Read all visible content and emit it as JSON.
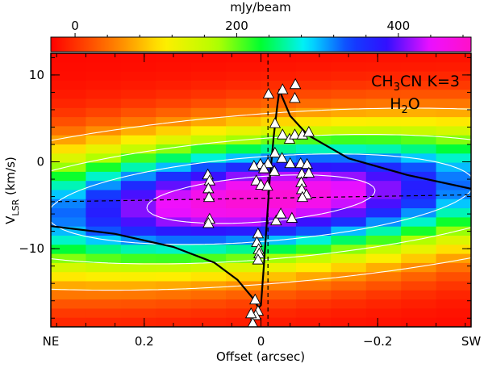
{
  "chart_data": {
    "type": "heatmap",
    "subtype": "position-velocity diagram",
    "colorbar": {
      "label": "mJy/beam",
      "range": [
        -30,
        490
      ],
      "ticks": [
        0,
        200,
        400
      ],
      "tick_labels": [
        "0",
        "200",
        "400"
      ],
      "stops": [
        {
          "v": -30,
          "color": "#ff0000"
        },
        {
          "v": 50,
          "color": "#ff8000"
        },
        {
          "v": 110,
          "color": "#ffee00"
        },
        {
          "v": 175,
          "color": "#b4ff00"
        },
        {
          "v": 230,
          "color": "#00ff30"
        },
        {
          "v": 285,
          "color": "#00f0ff"
        },
        {
          "v": 340,
          "color": "#1040ff"
        },
        {
          "v": 385,
          "color": "#3010ff"
        },
        {
          "v": 440,
          "color": "#ee10ff"
        },
        {
          "v": 490,
          "color": "#ff10c8"
        }
      ]
    },
    "xaxis": {
      "label": "Offset (arcsec)",
      "range": [
        0.36,
        -0.36
      ],
      "ticks": [
        0.2,
        0,
        -0.2
      ],
      "tick_labels": [
        "0.2",
        "0",
        "−0.2"
      ],
      "minor_step": 0.05,
      "end_labels": {
        "left": "NE",
        "right": "SW"
      }
    },
    "yaxis": {
      "label_main": "V",
      "label_sub": "LSR",
      "label_unit": " (km/s)",
      "range": [
        -19,
        12.5
      ],
      "ticks": [
        10,
        0,
        -10
      ],
      "tick_labels": [
        "10",
        "0",
        "−10"
      ],
      "minor_step": 2
    },
    "emission_model": {
      "v_systemic": -4.3,
      "peak_mjy": 480,
      "velocity_gradient_kms_per_arcsec": -5.0,
      "line_width_kms": 5.2,
      "spatial_extent_arcsec": 0.55,
      "background_mjy": -25
    },
    "contour_levels_mjy": [
      60,
      180,
      300,
      420
    ],
    "contour_color": "#ffffff",
    "reference_lines": [
      {
        "type": "vertical",
        "x": -0.012,
        "style": "dashed"
      },
      {
        "type": "fit",
        "style": "dashed",
        "points": [
          [
            0.36,
            -4.6
          ],
          [
            -0.36,
            -3.8
          ]
        ]
      }
    ],
    "keplerian_curves": [
      {
        "name": "red-shifted lobe (NE)",
        "points": [
          [
            0.36,
            -7.4
          ],
          [
            0.25,
            -8.3
          ],
          [
            0.15,
            -9.8
          ],
          [
            0.08,
            -11.6
          ],
          [
            0.04,
            -13.6
          ],
          [
            0.015,
            -15.6
          ],
          [
            0.004,
            -16.8
          ]
        ]
      },
      {
        "name": "blue-shifted lobe (SW)",
        "points": [
          [
            -0.36,
            -3.1
          ],
          [
            -0.25,
            -1.5
          ],
          [
            -0.15,
            0.4
          ],
          [
            -0.08,
            3.1
          ],
          [
            -0.05,
            5.3
          ],
          [
            -0.035,
            7.7
          ],
          [
            -0.032,
            8.4
          ]
        ]
      },
      {
        "name": "central connection",
        "points": [
          [
            0.004,
            -16.8
          ],
          [
            0.0,
            -16.5
          ],
          [
            -0.005,
            -12.0
          ],
          [
            -0.01,
            -7.0
          ],
          [
            -0.015,
            -2.0
          ],
          [
            -0.022,
            3.0
          ],
          [
            -0.028,
            6.5
          ],
          [
            -0.032,
            8.4
          ]
        ]
      }
    ],
    "h2o_masers": [
      {
        "x": -0.037,
        "y": 8.3
      },
      {
        "x": -0.013,
        "y": 7.8
      },
      {
        "x": -0.059,
        "y": 8.9
      },
      {
        "x": -0.058,
        "y": 7.3
      },
      {
        "x": -0.024,
        "y": 4.4
      },
      {
        "x": -0.037,
        "y": 3.1
      },
      {
        "x": -0.049,
        "y": 2.6
      },
      {
        "x": -0.058,
        "y": 3.1
      },
      {
        "x": -0.071,
        "y": 3.1
      },
      {
        "x": -0.082,
        "y": 3.4
      },
      {
        "x": -0.024,
        "y": 1.0
      },
      {
        "x": -0.036,
        "y": 0.4
      },
      {
        "x": -0.05,
        "y": -0.2
      },
      {
        "x": -0.068,
        "y": -0.2
      },
      {
        "x": -0.079,
        "y": -0.3
      },
      {
        "x": -0.012,
        "y": -0.2
      },
      {
        "x": -0.023,
        "y": -1.1
      },
      {
        "x": -0.07,
        "y": -1.4
      },
      {
        "x": -0.082,
        "y": -1.3
      },
      {
        "x": 0.001,
        "y": -0.3
      },
      {
        "x": -0.005,
        "y": -0.8
      },
      {
        "x": 0.012,
        "y": -0.5
      },
      {
        "x": 0.008,
        "y": -2.2
      },
      {
        "x": 0.0,
        "y": -2.7
      },
      {
        "x": -0.011,
        "y": -2.8
      },
      {
        "x": 0.091,
        "y": -1.5
      },
      {
        "x": 0.088,
        "y": -2.2
      },
      {
        "x": 0.09,
        "y": -3.1
      },
      {
        "x": 0.089,
        "y": -4.1
      },
      {
        "x": -0.069,
        "y": -2.4
      },
      {
        "x": -0.07,
        "y": -3.2
      },
      {
        "x": -0.078,
        "y": -3.8
      },
      {
        "x": -0.071,
        "y": -4.1
      },
      {
        "x": 0.088,
        "y": -6.6
      },
      {
        "x": 0.09,
        "y": -7.1
      },
      {
        "x": -0.026,
        "y": -6.8
      },
      {
        "x": -0.034,
        "y": -6.0
      },
      {
        "x": -0.053,
        "y": -6.5
      },
      {
        "x": 0.005,
        "y": -8.3
      },
      {
        "x": 0.007,
        "y": -9.3
      },
      {
        "x": 0.004,
        "y": -10.1
      },
      {
        "x": 0.003,
        "y": -10.6
      },
      {
        "x": 0.005,
        "y": -11.3
      },
      {
        "x": 0.01,
        "y": -15.9
      },
      {
        "x": 0.005,
        "y": -17.2
      },
      {
        "x": 0.009,
        "y": -17.7
      },
      {
        "x": 0.014,
        "y": -18.6
      },
      {
        "x": 0.017,
        "y": -17.5
      }
    ],
    "annotations": [
      {
        "text": "CH3CN K=3",
        "position": "top-right"
      },
      {
        "text": "H2O",
        "position": "top-right"
      }
    ]
  },
  "annotation_text": {
    "line1_pre": "CH",
    "line1_sub": "3",
    "line1_post": "CN K=3",
    "line2_pre": "H",
    "line2_sub": "2",
    "line2_post": "O"
  }
}
